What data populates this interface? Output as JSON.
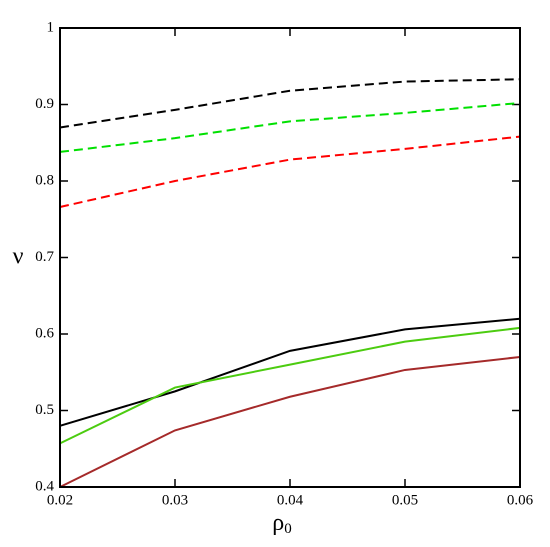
{
  "chart_data": {
    "type": "line",
    "xlabel": "ρ",
    "xlabel_sub": "0",
    "ylabel": "ν",
    "x": [
      0.02,
      0.03,
      0.04,
      0.05,
      0.06
    ],
    "series": [
      {
        "color": "#000000",
        "dashed": true,
        "values": [
          0.87,
          0.893,
          0.918,
          0.93,
          0.933
        ]
      },
      {
        "color": "#00e000",
        "dashed": true,
        "values": [
          0.838,
          0.856,
          0.878,
          0.889,
          0.902
        ]
      },
      {
        "color": "#ff0000",
        "dashed": true,
        "values": [
          0.766,
          0.8,
          0.828,
          0.842,
          0.858
        ]
      },
      {
        "color": "#000000",
        "dashed": false,
        "values": [
          0.48,
          0.525,
          0.578,
          0.606,
          0.62
        ]
      },
      {
        "color": "#4ccc10",
        "dashed": false,
        "values": [
          0.457,
          0.53,
          0.56,
          0.59,
          0.608
        ]
      },
      {
        "color": "#a52a2a",
        "dashed": false,
        "values": [
          0.4,
          0.474,
          0.518,
          0.553,
          0.57
        ]
      }
    ],
    "xlim": [
      0.02,
      0.06
    ],
    "xticks": [
      0.02,
      0.03,
      0.04,
      0.05,
      0.06
    ],
    "ylim": [
      0.4,
      1
    ],
    "yticks": [
      0.4,
      0.5,
      0.6,
      0.7,
      0.8,
      0.9,
      1
    ]
  }
}
